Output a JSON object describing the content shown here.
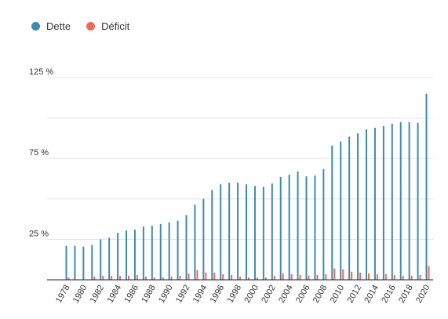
{
  "chart_data": {
    "type": "bar",
    "title": "",
    "xlabel": "",
    "ylabel": "",
    "legend_position": "top-left",
    "grid": true,
    "ylim": [
      0,
      130
    ],
    "yticks": [
      {
        "value": 25,
        "label": "25 %"
      },
      {
        "value": 75,
        "label": "75 %"
      },
      {
        "value": 125,
        "label": "125 %"
      }
    ],
    "categories": [
      "1978",
      "1979",
      "1980",
      "1981",
      "1982",
      "1983",
      "1984",
      "1985",
      "1986",
      "1987",
      "1988",
      "1989",
      "1990",
      "1991",
      "1992",
      "1993",
      "1994",
      "1995",
      "1996",
      "1997",
      "1998",
      "1999",
      "2000",
      "2001",
      "2002",
      "2003",
      "2004",
      "2005",
      "2006",
      "2007",
      "2008",
      "2009",
      "2010",
      "2011",
      "2012",
      "2013",
      "2014",
      "2015",
      "2016",
      "2017",
      "2018",
      "2019",
      "2020"
    ],
    "xtick_labels": [
      "1978",
      "1980",
      "1982",
      "1984",
      "1986",
      "1988",
      "1990",
      "1992",
      "1994",
      "1996",
      "1998",
      "2000",
      "2002",
      "2004",
      "2006",
      "2008",
      "2010",
      "2012",
      "2014",
      "2016",
      "2018",
      "2020"
    ],
    "series": [
      {
        "name": "Dette",
        "color": "#3c8bb0",
        "values": [
          21,
          21,
          20.5,
          21.5,
          25,
          26,
          29,
          30.5,
          31,
          33,
          33.5,
          34.5,
          35.5,
          36.5,
          40,
          46.5,
          50,
          55.5,
          59,
          60,
          60,
          59,
          58,
          57.5,
          59.5,
          63.5,
          65,
          67,
          64,
          64.5,
          68.5,
          83,
          85.5,
          88.5,
          90.5,
          93,
          94,
          95,
          96.5,
          97.5,
          97.5,
          97,
          115
        ]
      },
      {
        "name": "Déficit",
        "color": "#ef6b52",
        "values": [
          1.5,
          0,
          0,
          2,
          2.5,
          2.5,
          2.5,
          2.5,
          3,
          2,
          1.5,
          1.5,
          2,
          2.5,
          4,
          6,
          4.5,
          4.5,
          3.5,
          3,
          2,
          1.5,
          1.5,
          1.5,
          2.5,
          4,
          3.5,
          3,
          2.5,
          3,
          3.5,
          7,
          6.5,
          5,
          4.5,
          4,
          3.5,
          3.5,
          3,
          2.5,
          2.5,
          3,
          8.5
        ]
      }
    ]
  }
}
